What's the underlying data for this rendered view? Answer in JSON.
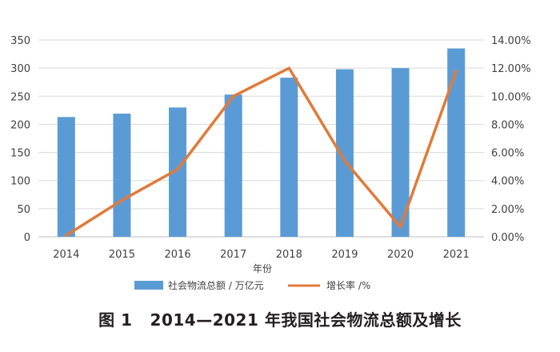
{
  "caption": {
    "figure_no": "图 1",
    "text": "2014—2021 年我国社会物流总额及增长"
  },
  "chart_data": {
    "type": "bar+line",
    "categories": [
      "2014",
      "2015",
      "2016",
      "2017",
      "2018",
      "2019",
      "2020",
      "2021"
    ],
    "xlabel": "年份",
    "series": [
      {
        "name": "社会物流总额 / 万亿元",
        "type": "bar",
        "axis": "left",
        "color": "#5b9bd5",
        "values": [
          213,
          219,
          230,
          253,
          283,
          298,
          300,
          335
        ]
      },
      {
        "name": "增长率 /%",
        "type": "line",
        "axis": "right",
        "color": "#e07b39",
        "values": [
          0.1,
          2.6,
          4.8,
          10.0,
          12.0,
          5.4,
          0.7,
          11.8
        ]
      }
    ],
    "y_left": {
      "min": 0,
      "max": 350,
      "step": 50,
      "ticks": [
        "0",
        "50",
        "100",
        "150",
        "200",
        "250",
        "300",
        "350"
      ]
    },
    "y_right": {
      "min": 0,
      "max": 14,
      "step": 2,
      "ticks": [
        "0.00%",
        "2.00%",
        "4.00%",
        "6.00%",
        "8.00%",
        "10.00%",
        "12.00%",
        "14.00%"
      ]
    },
    "grid": true,
    "legend_position": "bottom"
  }
}
